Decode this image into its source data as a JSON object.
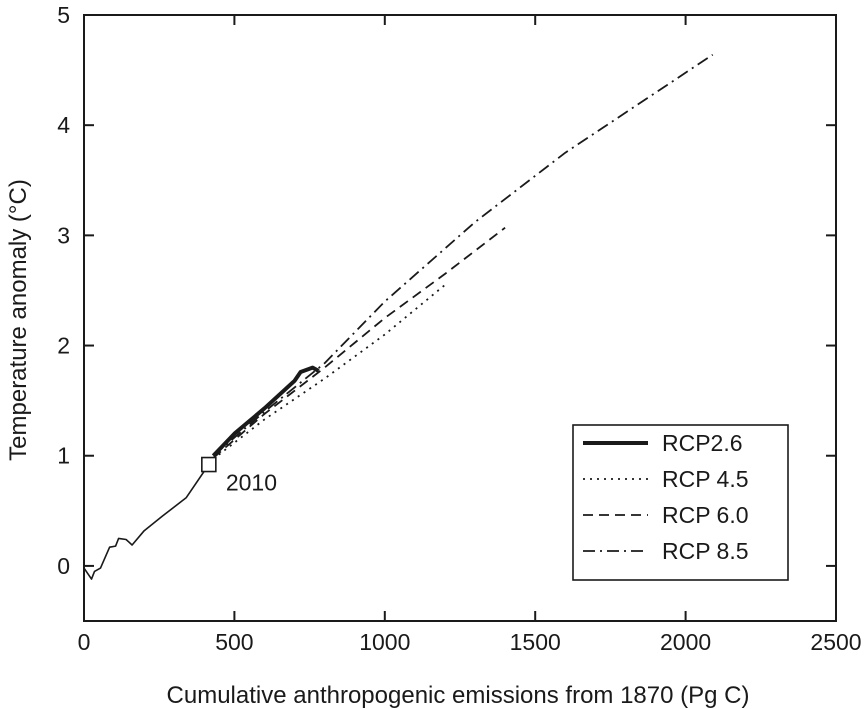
{
  "chart_data": {
    "type": "line",
    "title": "",
    "xlabel": "Cumulative anthropogenic emissions from 1870 (Pg C)",
    "ylabel": "Temperature anomaly (°C)",
    "xlim": [
      0,
      2500
    ],
    "ylim": [
      -0.5,
      5
    ],
    "xticks": [
      0,
      500,
      1000,
      1500,
      2000,
      2500
    ],
    "yticks": [
      0,
      1,
      2,
      3,
      4,
      5
    ],
    "grid": false,
    "legend_position": "bottom-right",
    "historical": {
      "x": [
        0,
        25,
        35,
        55,
        85,
        105,
        115,
        140,
        160,
        200,
        260,
        340,
        415
      ],
      "y": [
        -0.02,
        -0.12,
        -0.05,
        -0.02,
        0.17,
        0.18,
        0.25,
        0.24,
        0.19,
        0.32,
        0.45,
        0.62,
        0.92
      ]
    },
    "marker": {
      "x": 415,
      "y": 0.92,
      "label": "2010"
    },
    "series": [
      {
        "name": "RCP2.6",
        "style": "solid-thick",
        "x": [
          430,
          500,
          600,
          700,
          720,
          760,
          780
        ],
        "y": [
          1.0,
          1.2,
          1.43,
          1.68,
          1.76,
          1.8,
          1.77
        ]
      },
      {
        "name": "RCP 4.5",
        "style": "dotted",
        "x": [
          430,
          600,
          800,
          1000,
          1200
        ],
        "y": [
          0.97,
          1.33,
          1.7,
          2.1,
          2.55
        ]
      },
      {
        "name": "RCP 6.0",
        "style": "dashed",
        "x": [
          430,
          600,
          800,
          1000,
          1200,
          1400
        ],
        "y": [
          0.98,
          1.38,
          1.8,
          2.25,
          2.65,
          3.07
        ]
      },
      {
        "name": "RCP 8.5",
        "style": "dash-dot",
        "x": [
          430,
          600,
          800,
          1000,
          1300,
          1600,
          2090
        ],
        "y": [
          1.0,
          1.4,
          1.84,
          2.4,
          3.12,
          3.75,
          4.64
        ]
      }
    ]
  }
}
